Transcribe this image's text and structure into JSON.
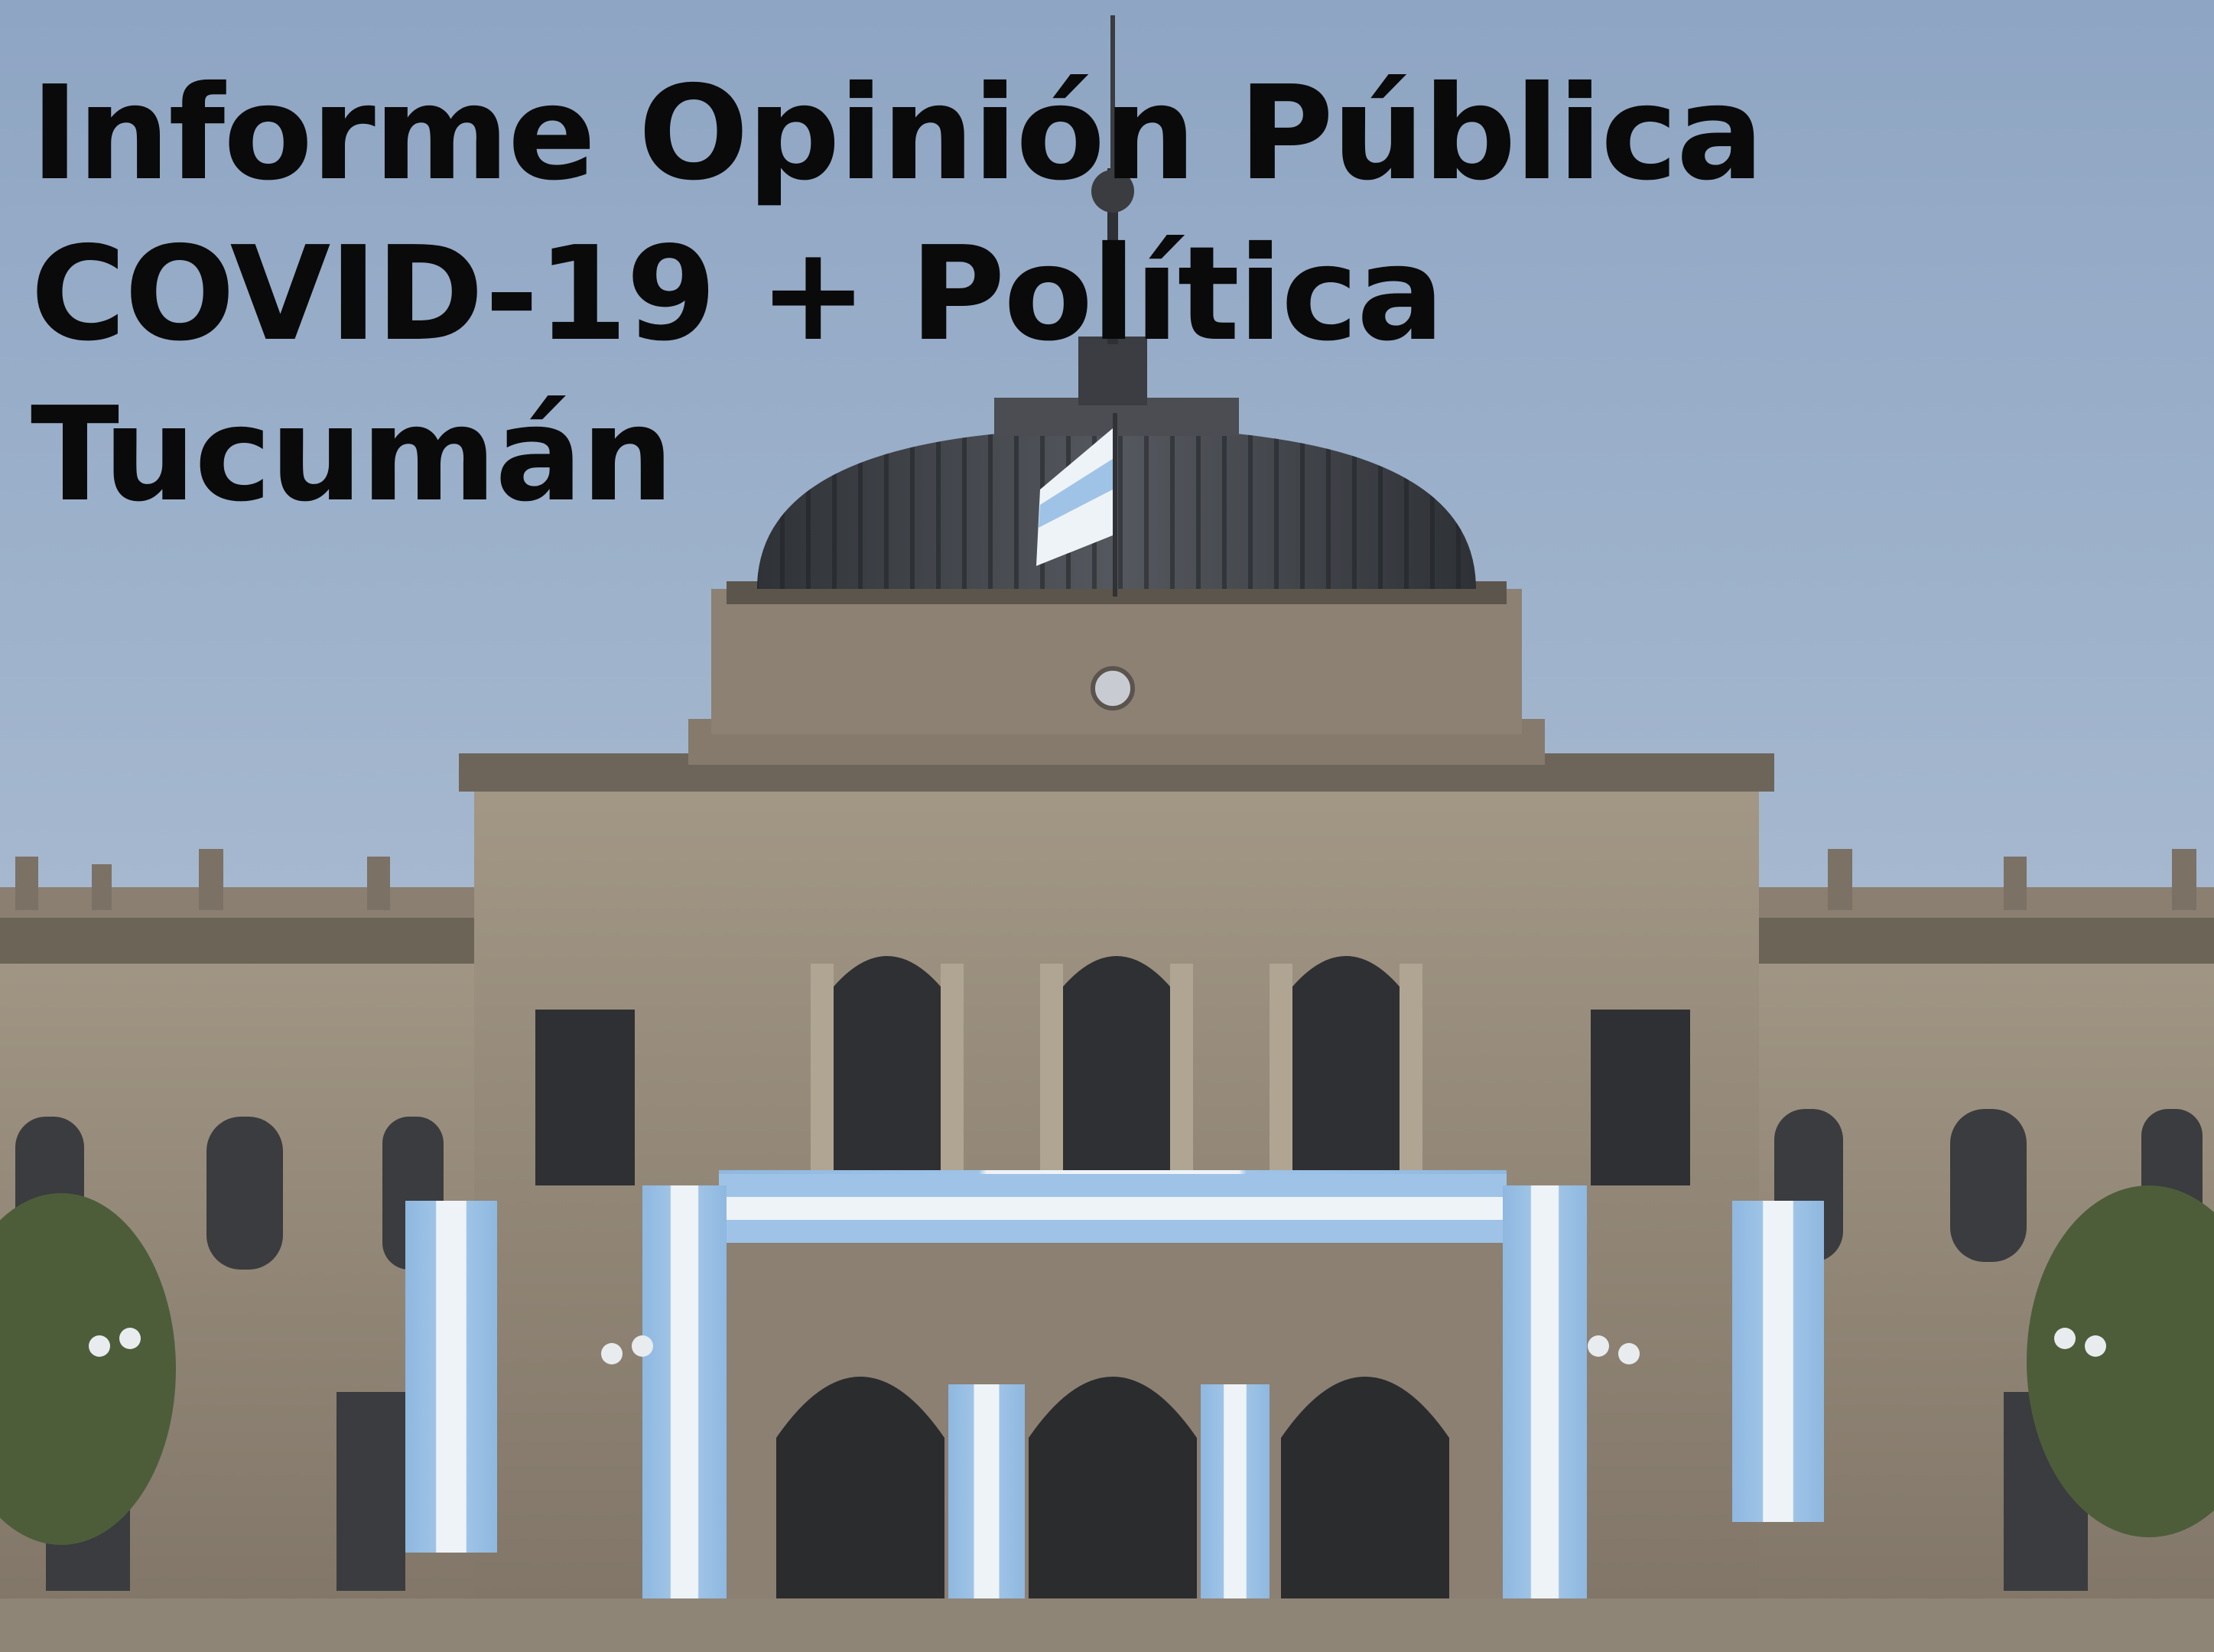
{
  "title": {
    "line1": "Informe Opinión Pública",
    "line2": "COVID-19 + Política",
    "line3": "Tucumán"
  },
  "colors": {
    "sky_top": "#8fa6c4",
    "sky_bottom": "#b6c6d8",
    "stone": "#9a8f80",
    "stone_dark": "#5e564c",
    "dome": "#3f4248",
    "flag_blue": "#9ec3e6",
    "flag_white": "#eef3f8",
    "foliage": "#4f5f3c"
  }
}
